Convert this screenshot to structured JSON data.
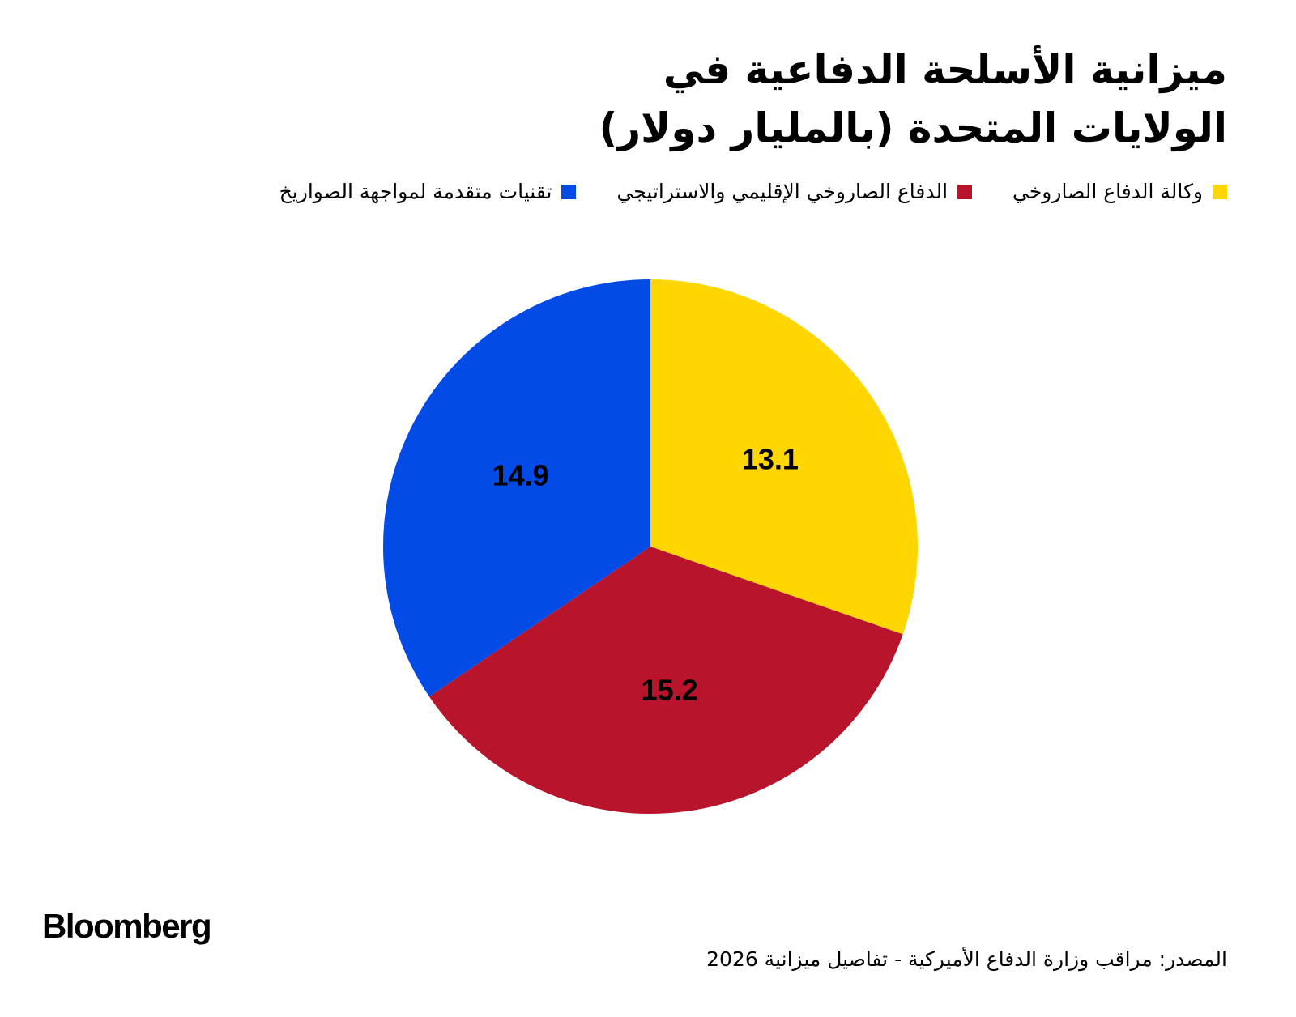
{
  "chart_data": {
    "type": "pie",
    "title": "ميزانية الأسلحة الدفاعية في الولايات المتحدة (بالمليار دولار)",
    "categories": [
      "وكالة الدفاع الصاروخي",
      "الدفاع الصاروخي الإقليمي والاستراتيجي",
      "تقنيات متقدمة لمواجهة الصواريخ"
    ],
    "values": [
      13.1,
      15.2,
      14.9
    ],
    "colors": [
      "#ffd600",
      "#b8152d",
      "#034be6"
    ],
    "source": "المصدر: مراقب وزارة الدفاع الأميركية - تفاصيل ميزانية 2026",
    "brand": "Bloomberg"
  }
}
